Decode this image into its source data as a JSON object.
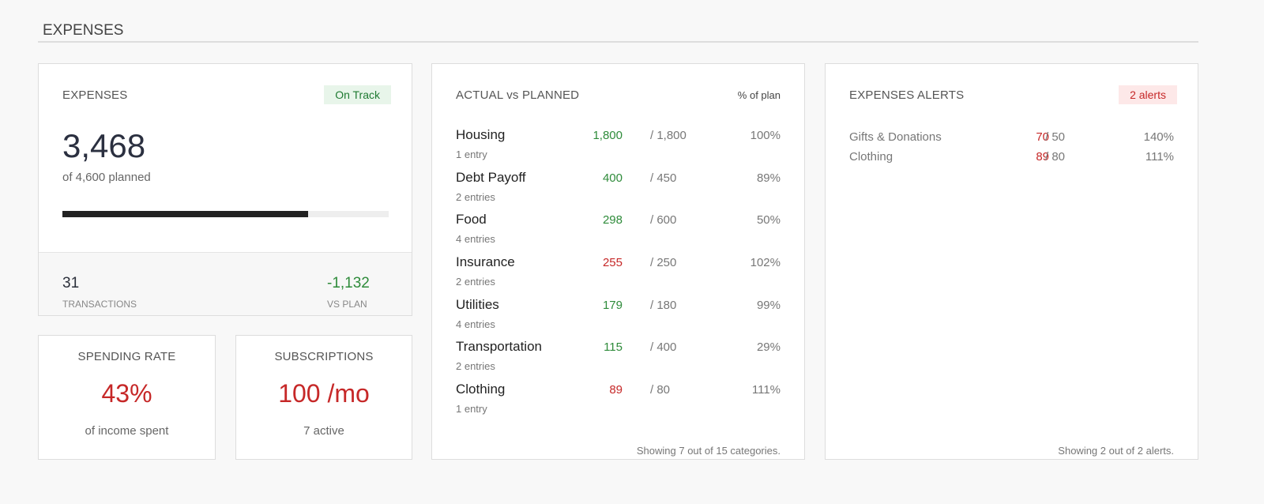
{
  "section": {
    "title": "EXPENSES"
  },
  "summary": {
    "title": "EXPENSES",
    "badge": "On Track",
    "amount": "3,468",
    "subtitle": "of 4,600 planned",
    "progress_percent": 75.4,
    "transactions": "31",
    "transactions_label": "TRANSACTIONS",
    "vs_plan": "-1,132",
    "vs_plan_label": "VS PLAN"
  },
  "spending_rate": {
    "title": "SPENDING RATE",
    "value": "43%",
    "subtitle": "of income spent"
  },
  "subscriptions": {
    "title": "SUBSCRIPTIONS",
    "value": "100 /mo",
    "subtitle": "7 active"
  },
  "actual_vs_planned": {
    "title": "ACTUAL vs PLANNED",
    "pct_header": "% of plan",
    "rows": [
      {
        "name": "Housing",
        "entries": "1 entry",
        "actual": "1,800",
        "planned": "/  1,800",
        "pct": "100%",
        "status": "ok"
      },
      {
        "name": "Debt Payoff",
        "entries": "2 entries",
        "actual": "400",
        "planned": "/  450",
        "pct": "89%",
        "status": "ok"
      },
      {
        "name": "Food",
        "entries": "4 entries",
        "actual": "298",
        "planned": "/  600",
        "pct": "50%",
        "status": "ok"
      },
      {
        "name": "Insurance",
        "entries": "2 entries",
        "actual": "255",
        "planned": "/  250",
        "pct": "102%",
        "status": "over"
      },
      {
        "name": "Utilities",
        "entries": "4 entries",
        "actual": "179",
        "planned": "/  180",
        "pct": "99%",
        "status": "ok"
      },
      {
        "name": "Transportation",
        "entries": "2 entries",
        "actual": "115",
        "planned": "/  400",
        "pct": "29%",
        "status": "ok"
      },
      {
        "name": "Clothing",
        "entries": "1 entry",
        "actual": "89",
        "planned": "/  80",
        "pct": "111%",
        "status": "over"
      }
    ],
    "footer": "Showing 7 out of 15 categories."
  },
  "alerts": {
    "title": "EXPENSES ALERTS",
    "badge": "2 alerts",
    "rows": [
      {
        "name": "Gifts & Donations",
        "actual": "70",
        "planned": "/  50",
        "pct": "140%"
      },
      {
        "name": "Clothing",
        "actual": "89",
        "planned": "/  80",
        "pct": "111%"
      }
    ],
    "footer": "Showing 2 out of 2 alerts."
  },
  "colors": {
    "ok": "#2e8b3a",
    "over": "#c62828"
  }
}
